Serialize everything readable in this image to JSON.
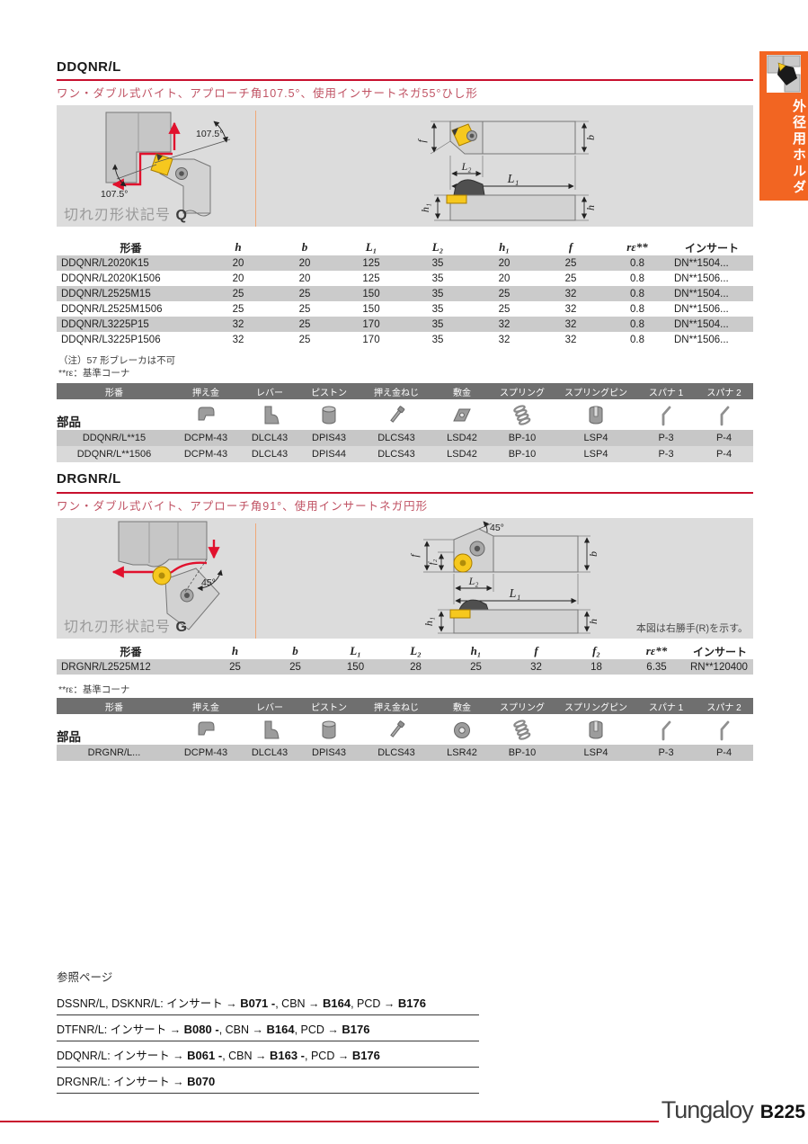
{
  "sidebar": {
    "tab_label": "外径用ホルダ"
  },
  "footer": {
    "brand": "Tungaloy",
    "page": "B225"
  },
  "sections": [
    {
      "title": "DDQNR/L",
      "subtitle": "ワン・ダブル式バイト、アプローチ角107.5°、使用インサートネガ55°ひし形",
      "edge_label": "切れ刃形状記号",
      "edge_symbol": "Q",
      "diagram": {
        "angle_top": "107.5°",
        "angle_bottom": "107.5°",
        "f": "f",
        "b": "b",
        "L1": "L₁",
        "L2": "L₂",
        "h1": "h₁",
        "h": "h"
      },
      "spec_table": {
        "headers": [
          "形番",
          "h",
          "b",
          "L₁",
          "L₂",
          "h₁",
          "f",
          "rε**",
          "インサート"
        ],
        "rows": [
          [
            "DDQNR/L2020K15",
            "20",
            "20",
            "125",
            "35",
            "20",
            "25",
            "0.8",
            "DN**1504..."
          ],
          [
            "DDQNR/L2020K1506",
            "20",
            "20",
            "125",
            "35",
            "20",
            "25",
            "0.8",
            "DN**1506..."
          ],
          [
            "DDQNR/L2525M15",
            "25",
            "25",
            "150",
            "35",
            "25",
            "32",
            "0.8",
            "DN**1504..."
          ],
          [
            "DDQNR/L2525M1506",
            "25",
            "25",
            "150",
            "35",
            "25",
            "32",
            "0.8",
            "DN**1506..."
          ],
          [
            "DDQNR/L3225P15",
            "32",
            "25",
            "170",
            "35",
            "32",
            "32",
            "0.8",
            "DN**1504..."
          ],
          [
            "DDQNR/L3225P1506",
            "32",
            "25",
            "170",
            "35",
            "32",
            "32",
            "0.8",
            "DN**1506..."
          ]
        ]
      },
      "notes": [
        "（注）57 形ブレーカは不可",
        "**rε：基準コーナ"
      ],
      "parts_label": "部品",
      "parts_table": {
        "headers": [
          "形番",
          "押え金",
          "レバー",
          "ピストン",
          "押え金ねじ",
          "敷金",
          "スプリング",
          "スプリングピン",
          "スパナ 1",
          "スパナ 2"
        ],
        "rows": [
          [
            "DDQNR/L**15",
            "DCPM-43",
            "DLCL43",
            "DPIS43",
            "DLCS43",
            "LSD42",
            "BP-10",
            "LSP4",
            "P-3",
            "P-4"
          ],
          [
            "DDQNR/L**1506",
            "DCPM-43",
            "DLCL43",
            "DPIS44",
            "DLCS43",
            "LSD42",
            "BP-10",
            "LSP4",
            "P-3",
            "P-4"
          ]
        ]
      }
    },
    {
      "title": "DRGNR/L",
      "subtitle": "ワン・ダブル式バイト、アプローチ角91°、使用インサートネガ円形",
      "edge_label": "切れ刃形状記号",
      "edge_symbol": "G",
      "hand_note": "本図は右勝手(R)を示す。",
      "diagram": {
        "angle_left": "45°",
        "angle": "45°",
        "f": "f",
        "f2": "f₂",
        "b": "b",
        "L1": "L₁",
        "L2": "L₂",
        "h1": "h₁",
        "h": "h"
      },
      "spec_table": {
        "headers": [
          "形番",
          "h",
          "b",
          "L₁",
          "L₂",
          "h₁",
          "f",
          "f₂",
          "rε**",
          "インサート"
        ],
        "rows": [
          [
            "DRGNR/L2525M12",
            "25",
            "25",
            "150",
            "28",
            "25",
            "32",
            "18",
            "6.35",
            "RN**120400"
          ]
        ]
      },
      "notes": [
        "**rε：基準コーナ"
      ],
      "parts_label": "部品",
      "parts_table": {
        "headers": [
          "形番",
          "押え金",
          "レバー",
          "ピストン",
          "押え金ねじ",
          "敷金",
          "スプリング",
          "スプリングピン",
          "スパナ 1",
          "スパナ 2"
        ],
        "rows": [
          [
            "DRGNR/L...",
            "DCPM-43",
            "DLCL43",
            "DPIS43",
            "DLCS43",
            "LSR42",
            "BP-10",
            "LSP4",
            "P-3",
            "P-4"
          ]
        ]
      }
    }
  ],
  "references": {
    "title": "参照ページ",
    "lines": [
      {
        "segments": [
          {
            "t": "DSSNR/L, DSKNR/L: インサート → "
          },
          {
            "t": "B071 -",
            "b": true
          },
          {
            "t": ", CBN → "
          },
          {
            "t": "B164",
            "b": true
          },
          {
            "t": ", PCD → "
          },
          {
            "t": "B176",
            "b": true
          }
        ]
      },
      {
        "segments": [
          {
            "t": "DTFNR/L: インサート → "
          },
          {
            "t": "B080 -",
            "b": true
          },
          {
            "t": ", CBN → "
          },
          {
            "t": "B164",
            "b": true
          },
          {
            "t": ", PCD → "
          },
          {
            "t": "B176",
            "b": true
          }
        ]
      },
      {
        "segments": [
          {
            "t": "DDQNR/L: インサート → "
          },
          {
            "t": "B061 -",
            "b": true
          },
          {
            "t": ", CBN → "
          },
          {
            "t": "B163 -",
            "b": true
          },
          {
            "t": ", PCD → "
          },
          {
            "t": "B176",
            "b": true
          }
        ]
      },
      {
        "segments": [
          {
            "t": "DRGNR/L: インサート → "
          },
          {
            "t": "B070",
            "b": true
          }
        ]
      }
    ]
  },
  "colors": {
    "accent_orange": "#f26522",
    "rule_red": "#c8102e",
    "subtitle_red": "#c05263",
    "panel_gray": "#dcdcdc"
  }
}
